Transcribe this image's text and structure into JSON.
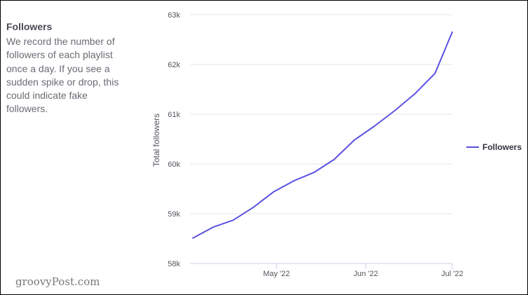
{
  "panel": {
    "title": "Followers",
    "description": "We record the number of followers of each playlist once a day. If you see a sudden spike or drop, this could indicate fake followers."
  },
  "watermark": "groovyPost.com",
  "colors": {
    "series": "#5b52e0",
    "grid": "#e6e6e6",
    "axis": "#ccd1e6",
    "text": "#55555f"
  },
  "chart_data": {
    "type": "line",
    "title": "",
    "xlabel": "",
    "ylabel": "Total followers",
    "ylim": [
      58000,
      63000
    ],
    "y_ticks": [
      "58k",
      "59k",
      "60k",
      "61k",
      "62k",
      "63k"
    ],
    "x_ticks": [
      "May '22",
      "Jun '22",
      "Jul '22"
    ],
    "grid": true,
    "legend_position": "right",
    "legend": [
      "Followers"
    ],
    "series": [
      {
        "name": "Followers",
        "x": [
          "2022-04-02",
          "2022-04-09",
          "2022-04-16",
          "2022-04-23",
          "2022-04-30",
          "2022-05-07",
          "2022-05-14",
          "2022-05-21",
          "2022-05-28",
          "2022-06-04",
          "2022-06-11",
          "2022-06-18",
          "2022-06-25",
          "2022-07-01"
        ],
        "values": [
          58510,
          58730,
          58870,
          59130,
          59440,
          59660,
          59830,
          60090,
          60480,
          60760,
          61070,
          61410,
          61820,
          62650
        ]
      }
    ]
  }
}
